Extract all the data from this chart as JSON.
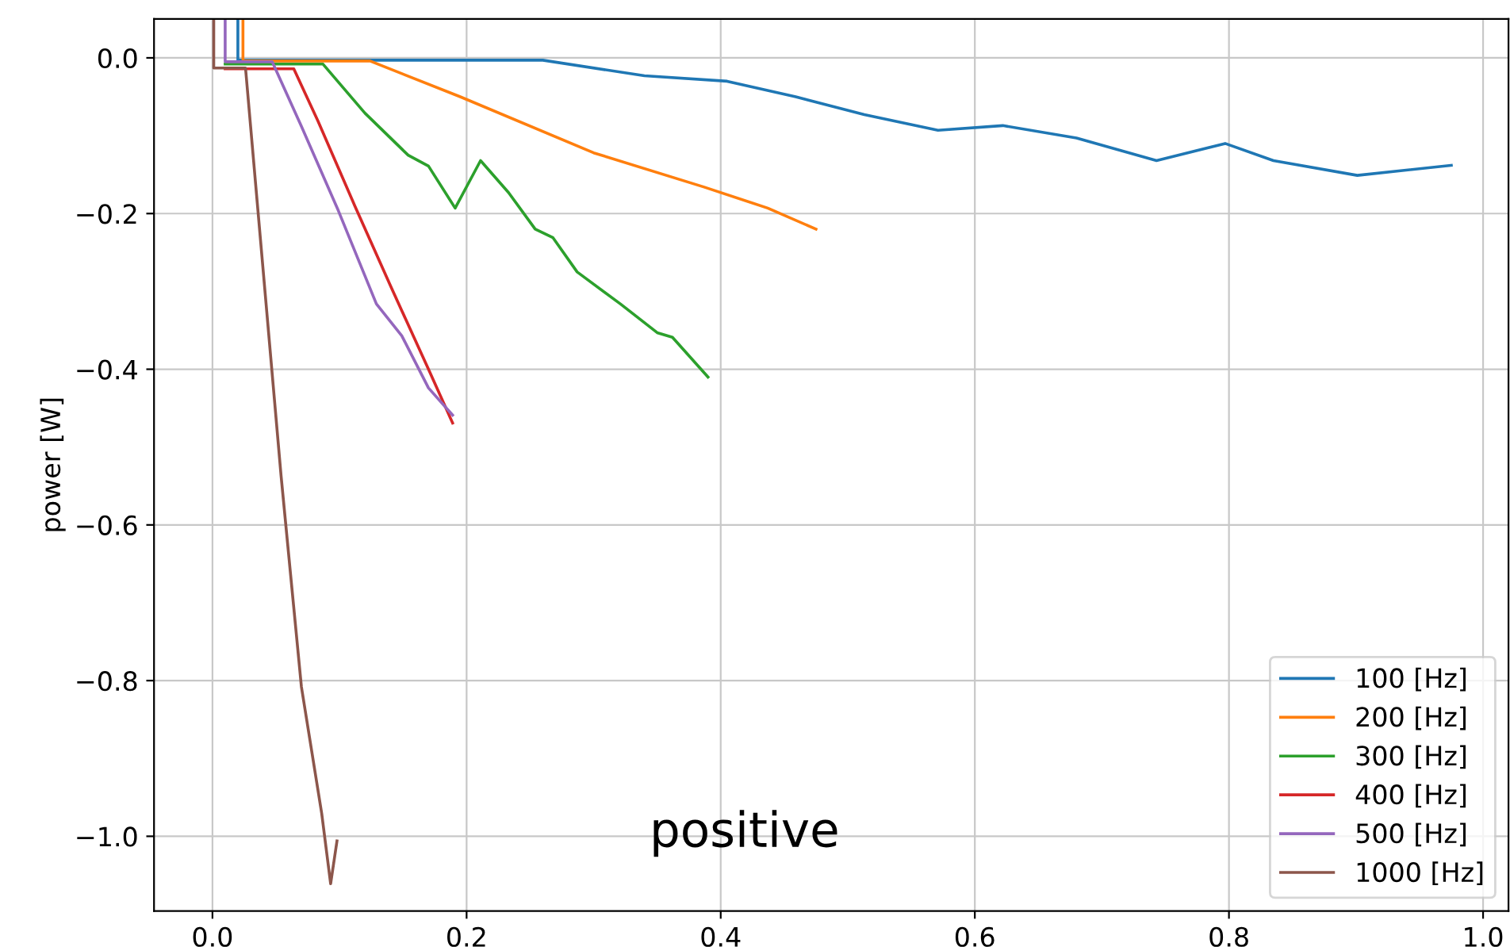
{
  "chart_data": {
    "type": "line",
    "ylabel": "power [W]",
    "xlim": [
      -0.046,
      1.02
    ],
    "ylim": [
      -1.096,
      0.05
    ],
    "xticks": [
      {
        "value": 0,
        "label": "0.0"
      },
      {
        "value": 0.2,
        "label": "0.2"
      },
      {
        "value": 0.4,
        "label": "0.4"
      },
      {
        "value": 0.6,
        "label": "0.6"
      },
      {
        "value": 0.8,
        "label": "0.8"
      },
      {
        "value": 1.0,
        "label": "1.0"
      }
    ],
    "yticks": [
      {
        "value": 0,
        "label": "0.0"
      },
      {
        "value": -0.2,
        "label": "−0.2"
      },
      {
        "value": -0.4,
        "label": "−0.4"
      },
      {
        "value": -0.6,
        "label": "−0.6"
      },
      {
        "value": -0.8,
        "label": "−0.8"
      },
      {
        "value": -1.0,
        "label": "−1.0"
      }
    ],
    "grid": true,
    "legend": "bottom right",
    "line_style": "solid",
    "marker": "none",
    "annotations": [
      "positive"
    ],
    "series": [
      {
        "name": "100 [Hz]",
        "color": "#1f77b4",
        "x": [
          0.02,
          0.02,
          0.26,
          0.34,
          0.405,
          0.459,
          0.513,
          0.571,
          0.622,
          0.68,
          0.743,
          0.797,
          0.835,
          0.901,
          0.975
        ],
        "values": [
          0.05,
          -0.003,
          -0.003,
          -0.023,
          -0.03,
          -0.05,
          -0.073,
          -0.093,
          -0.087,
          -0.103,
          -0.132,
          -0.11,
          -0.132,
          -0.151,
          -0.138
        ]
      },
      {
        "name": "200 [Hz]",
        "color": "#ff7f0e",
        "x": [
          0.024,
          0.024,
          0.124,
          0.195,
          0.3,
          0.387,
          0.437,
          0.475
        ],
        "values": [
          0.05,
          -0.004,
          -0.004,
          -0.05,
          -0.122,
          -0.166,
          -0.193,
          -0.22
        ]
      },
      {
        "name": "300 [Hz]",
        "color": "#2ca02c",
        "x": [
          0.01,
          0.087,
          0.12,
          0.154,
          0.17,
          0.191,
          0.211,
          0.233,
          0.254,
          0.268,
          0.287,
          0.321,
          0.35,
          0.362,
          0.39
        ],
        "values": [
          -0.008,
          -0.008,
          -0.071,
          -0.125,
          -0.139,
          -0.193,
          -0.132,
          -0.173,
          -0.22,
          -0.231,
          -0.275,
          -0.316,
          -0.353,
          -0.359,
          -0.41
        ]
      },
      {
        "name": "400 [Hz]",
        "color": "#d62728",
        "x": [
          0.01,
          0.064,
          0.083,
          0.112,
          0.141,
          0.17,
          0.189
        ],
        "values": [
          -0.014,
          -0.014,
          -0.081,
          -0.19,
          -0.296,
          -0.4,
          -0.469
        ]
      },
      {
        "name": "500 [Hz]",
        "color": "#9467bd",
        "x": [
          0.01,
          0.01,
          0.047,
          0.07,
          0.099,
          0.129,
          0.149,
          0.17,
          0.189
        ],
        "values": [
          0.05,
          -0.005,
          -0.005,
          -0.088,
          -0.196,
          -0.316,
          -0.357,
          -0.424,
          -0.459
        ]
      },
      {
        "name": "1000 [Hz]",
        "color": "#8c564b",
        "x": [
          0.001,
          0.001,
          0.026,
          0.054,
          0.07,
          0.086,
          0.093,
          0.098
        ],
        "values": [
          0.05,
          -0.013,
          -0.013,
          -0.537,
          -0.808,
          -0.971,
          -1.061,
          -1.006
        ]
      }
    ]
  }
}
